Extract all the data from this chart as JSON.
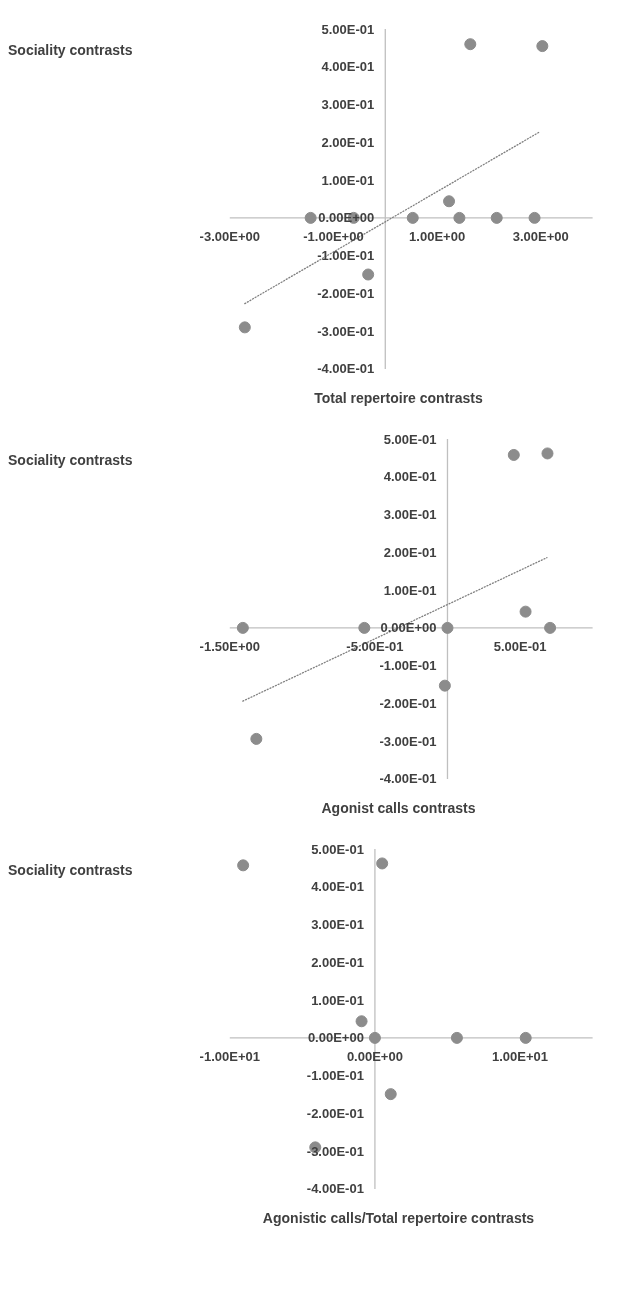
{
  "chart_data": [
    {
      "type": "scatter",
      "xlabel": "Total repertoire contrasts",
      "ylabel": "Sociality contrasts",
      "xlim": [
        -3,
        4
      ],
      "ylim": [
        -0.4,
        0.5
      ],
      "xticks": [
        {
          "value": -3,
          "label": "-3.00E+00"
        },
        {
          "value": -1,
          "label": "-1.00E+00"
        },
        {
          "value": 1,
          "label": "1.00E+00"
        },
        {
          "value": 3,
          "label": "3.00E+00"
        }
      ],
      "yticks": [
        {
          "value": -0.4,
          "label": "-4.00E-01"
        },
        {
          "value": -0.3,
          "label": "-3.00E-01"
        },
        {
          "value": -0.2,
          "label": "-2.00E-01"
        },
        {
          "value": -0.1,
          "label": "-1.00E-01"
        },
        {
          "value": 0,
          "label": "0.00E+00"
        },
        {
          "value": 0.1,
          "label": "1.00E-01"
        },
        {
          "value": 0.2,
          "label": "2.00E-01"
        },
        {
          "value": 0.3,
          "label": "3.00E-01"
        },
        {
          "value": 0.4,
          "label": "4.00E-01"
        },
        {
          "value": 0.5,
          "label": "5.00E-01"
        }
      ],
      "grid": false,
      "series": [
        {
          "marker": "circle",
          "color": "#8c8c8c",
          "x": [
            1.64,
            3.03,
            1.23,
            -1.44,
            -0.61,
            0.53,
            1.43,
            2.15,
            2.88,
            -0.33,
            -2.71
          ],
          "values": [
            0.46,
            0.455,
            0.044,
            0,
            0,
            0,
            0,
            0,
            0,
            -0.15,
            -0.29
          ]
        },
        {
          "type": "line",
          "marker": "none",
          "line_style": "dotted",
          "color": "#7f7f7f",
          "x": [
            -2.71,
            2.97
          ],
          "values": [
            -0.227,
            0.227
          ]
        }
      ]
    },
    {
      "type": "scatter",
      "xlabel": "Agonist calls contrasts",
      "ylabel": "Sociality contrasts",
      "xlim": [
        -1.5,
        1.0
      ],
      "ylim": [
        -0.4,
        0.5
      ],
      "xticks": [
        {
          "value": -1.5,
          "label": "-1.50E+00"
        },
        {
          "value": -0.5,
          "label": "-5.00E-01"
        },
        {
          "value": 0.5,
          "label": "5.00E-01"
        }
      ],
      "yticks": [
        {
          "value": -0.4,
          "label": "-4.00E-01"
        },
        {
          "value": -0.3,
          "label": "-3.00E-01"
        },
        {
          "value": -0.2,
          "label": "-2.00E-01"
        },
        {
          "value": -0.1,
          "label": "-1.00E-01"
        },
        {
          "value": 0,
          "label": "0.00E+00"
        },
        {
          "value": 0.1,
          "label": "1.00E-01"
        },
        {
          "value": 0.2,
          "label": "2.00E-01"
        },
        {
          "value": 0.3,
          "label": "3.00E-01"
        },
        {
          "value": 0.4,
          "label": "4.00E-01"
        },
        {
          "value": 0.5,
          "label": "5.00E-01"
        }
      ],
      "grid": false,
      "series": [
        {
          "marker": "circle",
          "color": "#8c8c8c",
          "x": [
            0.457,
            0.689,
            0.538,
            -1.41,
            -0.573,
            0,
            0.707,
            -0.018,
            -1.317
          ],
          "values": [
            0.458,
            0.462,
            0.043,
            0,
            0,
            0,
            0,
            -0.153,
            -0.294
          ]
        },
        {
          "type": "line",
          "marker": "none",
          "line_style": "dotted",
          "color": "#7f7f7f",
          "x": [
            -1.41,
            0.685
          ],
          "values": [
            -0.194,
            0.186
          ]
        }
      ]
    },
    {
      "type": "scatter",
      "xlabel": "Agonistic calls/Total repertoire contrasts",
      "ylabel": "Sociality contrasts",
      "xlim": [
        -10,
        15
      ],
      "ylim": [
        -0.4,
        0.5
      ],
      "xticks": [
        {
          "value": -10,
          "label": "-1.00E+01"
        },
        {
          "value": 0,
          "label": "0.00E+00"
        },
        {
          "value": 10,
          "label": "1.00E+01"
        }
      ],
      "yticks": [
        {
          "value": -0.4,
          "label": "-4.00E-01"
        },
        {
          "value": -0.3,
          "label": "-3.00E-01"
        },
        {
          "value": -0.2,
          "label": "-2.00E-01"
        },
        {
          "value": -0.1,
          "label": "-1.00E-01"
        },
        {
          "value": 0,
          "label": "0.00E+00"
        },
        {
          "value": 0.1,
          "label": "1.00E-01"
        },
        {
          "value": 0.2,
          "label": "2.00E-01"
        },
        {
          "value": 0.3,
          "label": "3.00E-01"
        },
        {
          "value": 0.4,
          "label": "4.00E-01"
        },
        {
          "value": 0.5,
          "label": "5.00E-01"
        }
      ],
      "grid": false,
      "marker": "circle",
      "series": [
        {
          "color": "#8c8c8c",
          "x": [
            -9.08,
            0.5,
            -0.92,
            0,
            5.65,
            10.39,
            1.09,
            -4.11
          ],
          "values": [
            0.457,
            0.462,
            0.044,
            0,
            0,
            0,
            -0.149,
            -0.29
          ]
        }
      ]
    }
  ]
}
